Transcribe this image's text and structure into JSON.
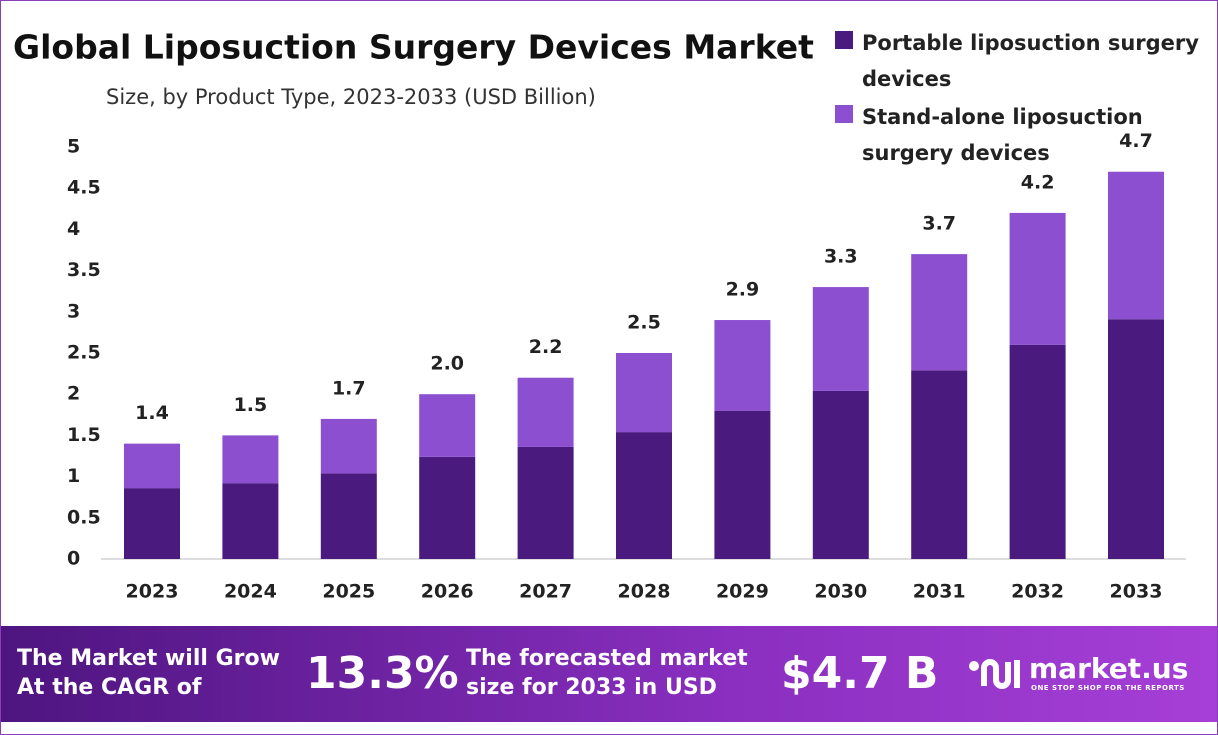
{
  "chart_data": {
    "type": "stacked-bar",
    "title": "Global Liposuction Surgery Devices Market",
    "subtitle": "Size, by Product Type, 2023-2033 (USD Billion)",
    "categories": [
      "2023",
      "2024",
      "2025",
      "2026",
      "2027",
      "2028",
      "2029",
      "2030",
      "2031",
      "2032",
      "2033"
    ],
    "series": [
      {
        "name": "Portable liposuction surgery devices",
        "color": "#4b1a7f",
        "values": [
          0.86,
          0.92,
          1.04,
          1.24,
          1.36,
          1.54,
          1.8,
          2.04,
          2.29,
          2.6,
          2.91
        ]
      },
      {
        "name": "Stand-alone liposuction surgery devices",
        "color": "#8b4fd0",
        "values": [
          0.54,
          0.58,
          0.66,
          0.76,
          0.84,
          0.96,
          1.1,
          1.26,
          1.41,
          1.6,
          1.79
        ]
      }
    ],
    "totals": [
      1.4,
      1.5,
      1.7,
      2,
      2.2,
      2.5,
      2.9,
      3.3,
      3.7,
      4.2,
      4.7
    ],
    "total_labels": [
      "1.4",
      "1.5",
      "1.7",
      "2.0",
      "2.2",
      "2.5",
      "2.9",
      "3.3",
      "3.7",
      "4.2",
      "4.7"
    ],
    "ylim": [
      0,
      5
    ],
    "yticks": [
      0,
      0.5,
      1,
      1.5,
      2,
      2.5,
      3,
      3.5,
      4,
      4.5,
      5
    ],
    "grid": false,
    "legend": "top-right"
  },
  "footer": {
    "cagr_lines": [
      "The Market will Grow",
      "At the CAGR of"
    ],
    "cagr": "13.3%",
    "forecast_lines": [
      "The forecasted market",
      "size for 2033 in USD"
    ],
    "forecast_value": "$4.7 B",
    "brand": "market.us",
    "tagline": "ONE STOP SHOP FOR THE REPORTS"
  }
}
